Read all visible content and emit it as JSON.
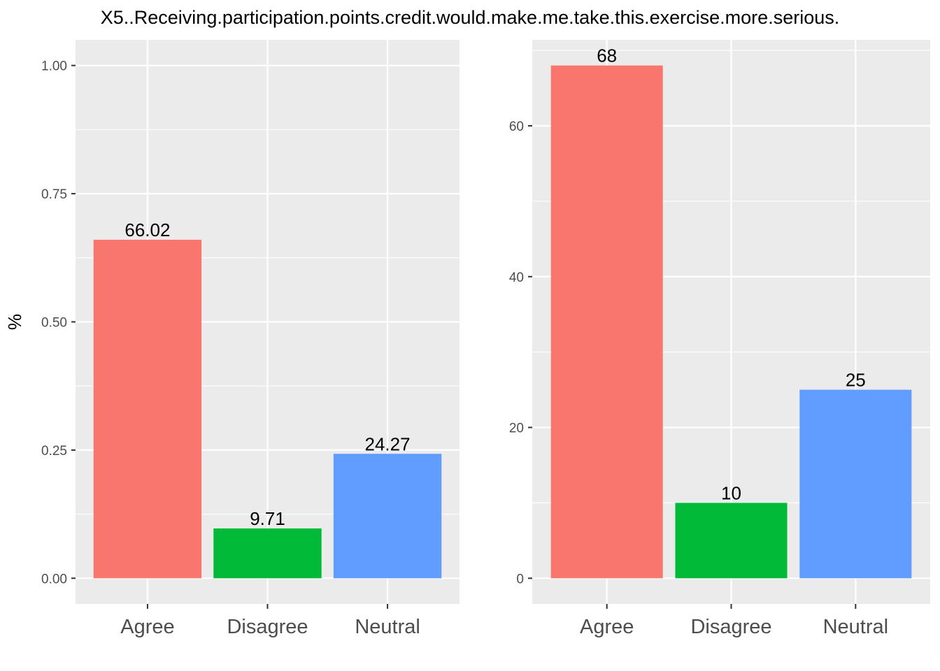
{
  "title": "X5..Receiving.participation.points.credit.would.make.me.take.this.exercise.more.serious.",
  "chart_data": [
    {
      "type": "bar",
      "categories": [
        "Agree",
        "Disagree",
        "Neutral"
      ],
      "values": [
        0.6602,
        0.0971,
        0.2427
      ],
      "data_labels": [
        "66.02",
        "9.71",
        "24.27"
      ],
      "ylabel": "%",
      "ylim": [
        -0.05,
        1.05
      ],
      "yticks": [
        0,
        0.25,
        0.5,
        0.75,
        1.0
      ],
      "ytick_labels": [
        "0.00",
        "0.25",
        "0.50",
        "0.75",
        "1.00"
      ],
      "colors": [
        "#F8766D",
        "#00BA38",
        "#619CFF"
      ],
      "grid": true,
      "panel_background": "#EBEBEB"
    },
    {
      "type": "bar",
      "categories": [
        "Agree",
        "Disagree",
        "Neutral"
      ],
      "values": [
        68,
        10,
        25
      ],
      "data_labels": [
        "68",
        "10",
        "25"
      ],
      "ylabel": "",
      "ylim": [
        -3.4,
        71.4
      ],
      "yticks": [
        0,
        20,
        40,
        60
      ],
      "ytick_labels": [
        "0",
        "20",
        "40",
        "60"
      ],
      "colors": [
        "#F8766D",
        "#00BA38",
        "#619CFF"
      ],
      "grid": true,
      "panel_background": "#EBEBEB"
    }
  ]
}
